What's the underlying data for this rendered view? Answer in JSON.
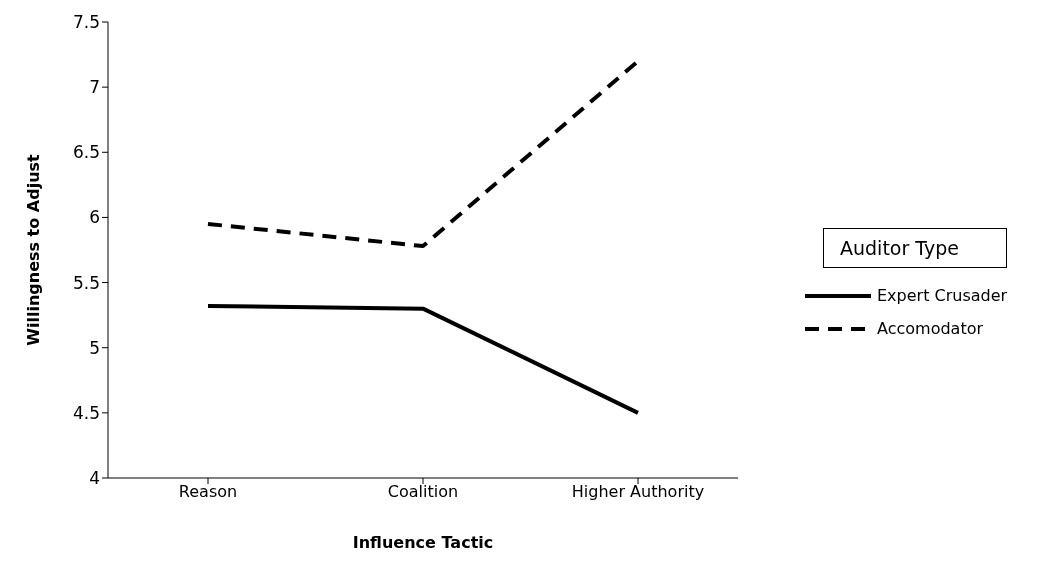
{
  "chart_data": {
    "type": "line",
    "xlabel": "Influence Tactic",
    "ylabel": "Willingness to Adjust",
    "legend_title": "Auditor Type",
    "categories": [
      "Reason",
      "Coalition",
      "Higher Authority"
    ],
    "series": [
      {
        "name": "Expert Crusader",
        "color": "#000000",
        "line_style": "solid",
        "values": [
          5.32,
          5.3,
          4.5
        ]
      },
      {
        "name": "Accomodator",
        "color": "#000000",
        "line_style": "dashed",
        "values": [
          5.95,
          5.78,
          7.2
        ]
      }
    ],
    "ylim": [
      4,
      7.5
    ],
    "yticks": [
      4,
      4.5,
      5,
      5.5,
      6,
      6.5,
      7,
      7.5
    ],
    "grid": false,
    "legend": "right",
    "marker": "none"
  }
}
